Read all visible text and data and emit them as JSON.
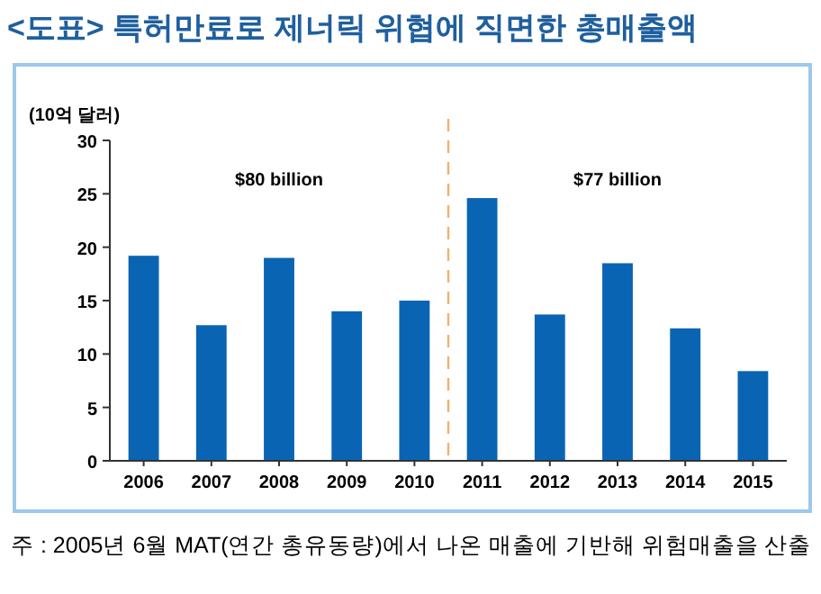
{
  "chart_data": {
    "type": "bar",
    "title": "<도표> 특허만료로 제너릭 위협에 직면한 총매출액",
    "ylabel": "(10억 달러)",
    "x": [
      2006,
      2007,
      2008,
      2009,
      2010,
      2011,
      2012,
      2013,
      2014,
      2015
    ],
    "values": [
      19.2,
      12.7,
      19.0,
      14.0,
      15.0,
      24.6,
      13.7,
      18.5,
      12.4,
      8.4
    ],
    "color": "#0a64b4",
    "xlim": [
      2005.5,
      2015.5
    ],
    "xticks": [
      2006,
      2007,
      2008,
      2009,
      2010,
      2011,
      2012,
      2013,
      2014,
      2015
    ],
    "ylim": [
      0,
      30
    ],
    "yticks": [
      0,
      5,
      10,
      15,
      20,
      25,
      30
    ],
    "ref_lines": [
      {
        "axis": "x",
        "value": 2010.5,
        "color": "#f0b070",
        "line_style": "dashed"
      }
    ],
    "annotations": [
      "$80 billion",
      "$77 billion",
      "주 : 2005년 6월 MAT(연간 총유동량)에서 나온 매출에 기반해 위험매출을 산출"
    ]
  }
}
